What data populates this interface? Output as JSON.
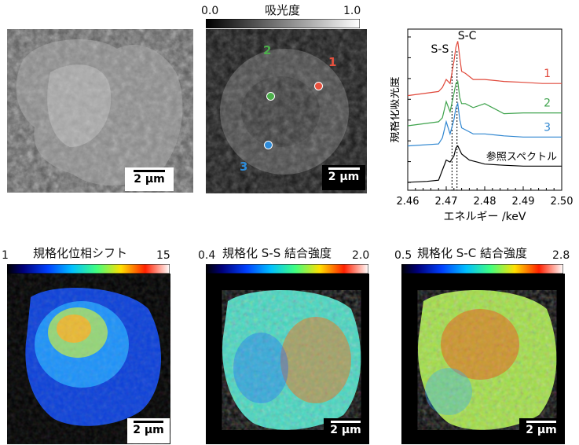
{
  "top": {
    "sem": {
      "scale": "2 μm"
    },
    "absorbance": {
      "title": "吸光度",
      "cb_min": "0.0",
      "cb_max": "1.0",
      "scale": "2 μm",
      "points": [
        {
          "label": "1",
          "color": "#e8513e"
        },
        {
          "label": "2",
          "color": "#4caf4b"
        },
        {
          "label": "3",
          "color": "#2e8bd8"
        }
      ]
    }
  },
  "chart_data": {
    "type": "line",
    "xlabel": "エネルギー /keV",
    "ylabel": "規格化吸光度",
    "xlim": [
      2.46,
      2.5
    ],
    "x_ticks": [
      "2.46",
      "2.47",
      "2.48",
      "2.49",
      "2.50"
    ],
    "annotations": [
      "S-S",
      "S-C"
    ],
    "series": [
      {
        "name": "1",
        "color": "#e0483a",
        "x": [
          2.46,
          2.468,
          2.469,
          2.47,
          2.471,
          2.472,
          2.4725,
          2.473,
          2.4735,
          2.474,
          2.475,
          2.477,
          2.48,
          2.485,
          2.49,
          2.495,
          2.5
        ],
        "y": [
          2.15,
          2.25,
          2.35,
          2.55,
          2.45,
          3.0,
          3.35,
          3.5,
          3.1,
          2.75,
          2.7,
          2.55,
          2.55,
          2.5,
          2.48,
          2.45,
          2.45
        ]
      },
      {
        "name": "2",
        "color": "#3fa34d",
        "x": [
          2.46,
          2.468,
          2.469,
          2.47,
          2.471,
          2.472,
          2.4725,
          2.473,
          2.4735,
          2.474,
          2.475,
          2.477,
          2.48,
          2.485,
          2.49,
          2.495,
          2.5
        ],
        "y": [
          1.4,
          1.5,
          1.6,
          2.0,
          1.75,
          2.2,
          2.45,
          2.5,
          2.1,
          1.95,
          1.95,
          1.85,
          1.95,
          1.7,
          1.72,
          1.72,
          1.72
        ]
      },
      {
        "name": "3",
        "color": "#2f86d0",
        "x": [
          2.46,
          2.468,
          2.469,
          2.47,
          2.471,
          2.472,
          2.4725,
          2.473,
          2.4735,
          2.474,
          2.475,
          2.477,
          2.48,
          2.485,
          2.49,
          2.495,
          2.5
        ],
        "y": [
          0.9,
          0.95,
          1.1,
          1.5,
          1.2,
          1.55,
          1.85,
          1.95,
          1.55,
          1.35,
          1.3,
          1.2,
          1.2,
          1.15,
          1.12,
          1.12,
          1.12
        ]
      },
      {
        "name": "参照スペクトル",
        "color": "#000000",
        "x": [
          2.46,
          2.465,
          2.468,
          2.469,
          2.47,
          2.471,
          2.472,
          2.4725,
          2.473,
          2.4735,
          2.474,
          2.476,
          2.478,
          2.48,
          2.485,
          2.49,
          2.5
        ],
        "y": [
          0.0,
          0.02,
          0.05,
          0.3,
          0.55,
          0.5,
          0.65,
          0.85,
          0.9,
          0.8,
          0.7,
          0.55,
          0.5,
          0.45,
          0.42,
          0.4,
          0.4
        ]
      }
    ]
  },
  "bottom": {
    "phase": {
      "title": "規格化位相シフト",
      "cb_min": "1",
      "cb_max": "15",
      "scale": "2 μm"
    },
    "ss": {
      "title": "規格化 S-S 結合強度",
      "cb_min": "0.4",
      "cb_max": "2.0",
      "scale": "2 μm"
    },
    "sc": {
      "title": "規格化 S-C 結合強度",
      "cb_min": "0.5",
      "cb_max": "2.8",
      "scale": "2 μm"
    }
  }
}
